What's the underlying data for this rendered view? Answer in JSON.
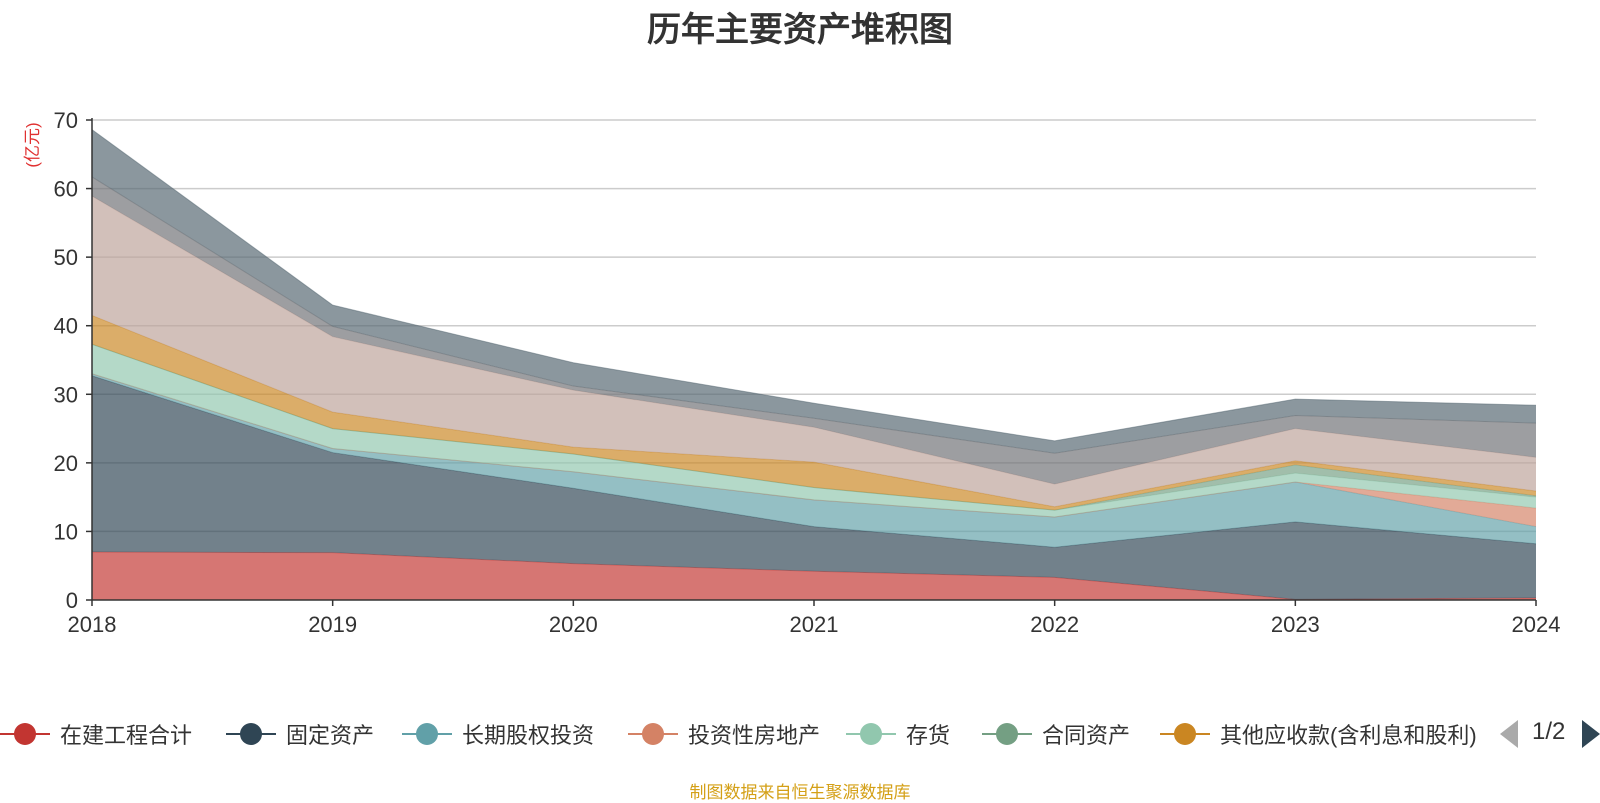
{
  "chart_data": {
    "type": "area",
    "stacked": true,
    "title": "历年主要资产堆积图",
    "ylabel": "(亿元)",
    "xlabel": "",
    "ylim": [
      0,
      70
    ],
    "yticks": [
      0,
      10,
      20,
      30,
      40,
      50,
      60,
      70
    ],
    "grid": true,
    "legend_position": "bottom",
    "categories": [
      "2018",
      "2019",
      "2020",
      "2021",
      "2022",
      "2023",
      "2024"
    ],
    "series": [
      {
        "name": "在建工程合计",
        "color": "#c23531",
        "values": [
          7.0,
          6.9,
          5.3,
          4.2,
          3.3,
          0.1,
          0.3
        ]
      },
      {
        "name": "固定资产",
        "color": "#2f4554",
        "values": [
          25.7,
          14.6,
          11.0,
          6.5,
          4.4,
          11.3,
          7.9
        ]
      },
      {
        "name": "长期股权投资",
        "color": "#61a0a8",
        "values": [
          0.3,
          0.6,
          2.4,
          3.9,
          4.4,
          5.8,
          2.5
        ]
      },
      {
        "name": "投资性房地产",
        "color": "#d48265",
        "values": [
          0.0,
          0.0,
          0.0,
          0.0,
          0.0,
          0.0,
          2.7
        ]
      },
      {
        "name": "存货",
        "color": "#91c7ae",
        "values": [
          4.3,
          2.9,
          2.6,
          1.8,
          1.0,
          1.3,
          1.6
        ]
      },
      {
        "name": "合同资产",
        "color": "#749f83",
        "values": [
          0.0,
          0.0,
          0.0,
          0.0,
          0.0,
          1.2,
          0.2
        ]
      },
      {
        "name": "其他应收款(含利息和股利)",
        "color": "#ca8622",
        "values": [
          4.2,
          2.4,
          1.0,
          3.7,
          0.5,
          0.6,
          0.7
        ]
      },
      {
        "name": "",
        "color": "#bda29a",
        "values": [
          17.4,
          11.0,
          8.3,
          5.1,
          3.3,
          4.7,
          4.9
        ]
      },
      {
        "name": "",
        "color": "#6e7074",
        "values": [
          2.8,
          1.5,
          0.6,
          1.3,
          4.5,
          1.9,
          5.0
        ]
      },
      {
        "name": "",
        "color": "#546570",
        "values": [
          6.9,
          3.1,
          3.4,
          2.2,
          1.8,
          2.4,
          2.6
        ]
      }
    ]
  },
  "legend": {
    "page": "1/2"
  },
  "source_note": "制图数据来自恒生聚源数据库"
}
